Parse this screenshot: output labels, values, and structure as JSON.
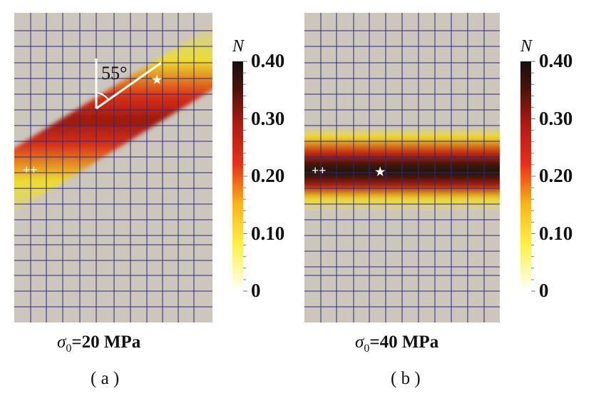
{
  "panels": [
    {
      "id": "a",
      "caption_symbol": "σ",
      "caption_sub": "0",
      "caption_value": "=20 MPa",
      "label": "( a )",
      "angle_label": "55°",
      "markers": {
        "cross": "++",
        "star": "★"
      },
      "band": "inclined"
    },
    {
      "id": "b",
      "caption_symbol": "σ",
      "caption_sub": "0",
      "caption_value": "=40 MPa",
      "label": "( b )",
      "markers": {
        "cross": "++",
        "star": "★"
      },
      "band": "horizontal"
    }
  ],
  "colorbar": {
    "title": "N",
    "ticks": [
      "0.40",
      "0.30",
      "0.20",
      "0.10",
      "0"
    ],
    "min": 0,
    "max": 0.4,
    "colors": [
      "#ffffff",
      "#ffee20",
      "#f5a010",
      "#e8301c",
      "#b81a10",
      "#5a100c",
      "#1a1210"
    ]
  },
  "colors": {
    "background": "#ccc6bc",
    "mesh": "#2a2a80",
    "annotation": "#ffffff"
  }
}
